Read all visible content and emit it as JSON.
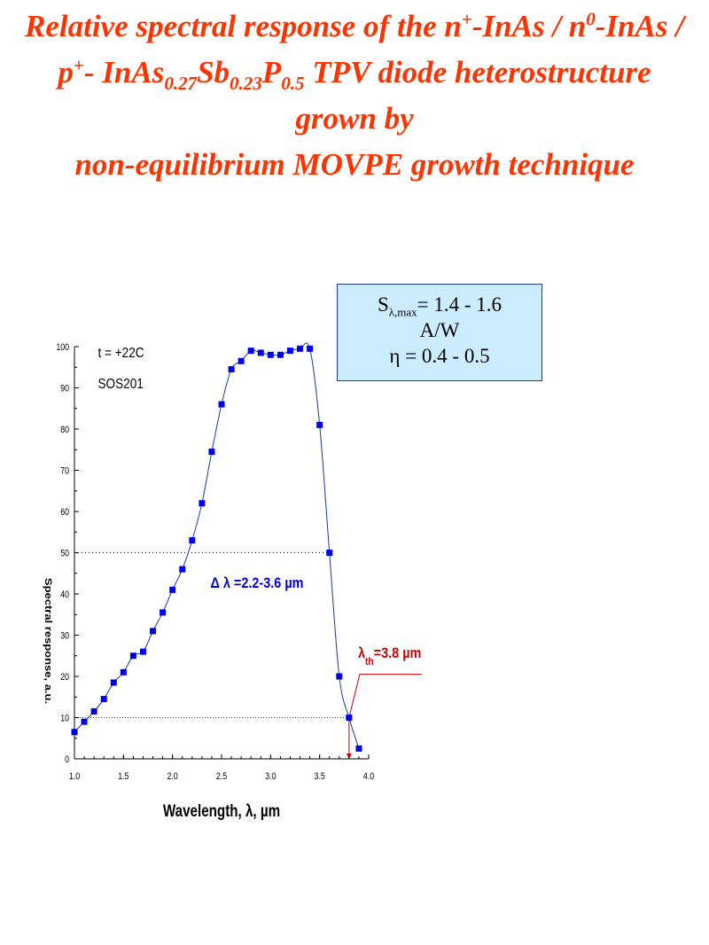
{
  "title": {
    "part1": "Relative spectral response of the n",
    "sup1": "+",
    "part2": "-InAs / n",
    "sup2": "0",
    "part3": "-InAs / p",
    "sup3": "+",
    "part4": "- InAs",
    "sub1": "0.27",
    "part5": "Sb",
    "sub2": "0.23",
    "part6": "P",
    "sub3": "0.5",
    "part7": " TPV diode heterostructure grown by",
    "line3": "non-equilibrium MOVPE growth technique"
  },
  "infobox": {
    "s_label": "S",
    "s_sub": "λ,max",
    "s_value": "= 1.4 - 1.6",
    "s_unit": "A/W",
    "eta": "η = 0.4 - 0.5"
  },
  "chart_data": {
    "type": "scatter",
    "xlabel": "Wavelength, λ, µm",
    "ylabel": "Spectral response, a.u.",
    "xlim": [
      1.0,
      4.0
    ],
    "ylim": [
      0,
      100
    ],
    "x_ticks": [
      "1.0",
      "1.5",
      "2.0",
      "2.5",
      "3.0",
      "3.5",
      "4.0"
    ],
    "y_ticks": [
      "0",
      "10",
      "20",
      "30",
      "40",
      "50",
      "60",
      "70",
      "80",
      "90",
      "100"
    ],
    "legend": [
      "t = +22C",
      "SOS201"
    ],
    "series": [
      {
        "points": [
          [
            1.0,
            6.5
          ],
          [
            1.1,
            9
          ],
          [
            1.2,
            11.5
          ],
          [
            1.3,
            14.5
          ],
          [
            1.4,
            18.5
          ],
          [
            1.5,
            21
          ],
          [
            1.6,
            25
          ],
          [
            1.7,
            26
          ],
          [
            1.8,
            31
          ],
          [
            1.9,
            35.5
          ],
          [
            2.0,
            41
          ],
          [
            2.1,
            46
          ],
          [
            2.2,
            53
          ],
          [
            2.3,
            62
          ],
          [
            2.4,
            74.5
          ],
          [
            2.5,
            86
          ],
          [
            2.6,
            94.5
          ],
          [
            2.7,
            96.5
          ],
          [
            2.8,
            99
          ],
          [
            2.9,
            98.5
          ],
          [
            3.0,
            98
          ],
          [
            3.1,
            98
          ],
          [
            3.2,
            99
          ],
          [
            3.3,
            99.5
          ],
          [
            3.4,
            99.5
          ],
          [
            3.5,
            81
          ],
          [
            3.6,
            50
          ],
          [
            3.7,
            20
          ],
          [
            3.8,
            10
          ],
          [
            3.9,
            2.5
          ]
        ]
      }
    ],
    "annotations": {
      "delta_lambda": "Δ λ =2.2-3.6 µm",
      "lambda_th_main": "λ",
      "lambda_th_sub": "th",
      "lambda_th_value": "=3.8 µm"
    },
    "reference_lines": {
      "half_max": 50,
      "threshold_level": 10,
      "threshold_x": 3.8
    },
    "colors": {
      "marker": "#0000ee",
      "curve": "#1a3a9a",
      "threshold": "#cc0000",
      "title": "#ff3300"
    }
  }
}
